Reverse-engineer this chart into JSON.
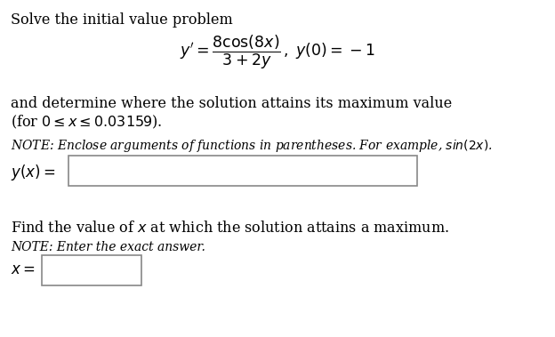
{
  "bg_color": "#ffffff",
  "title_text": "Solve the initial value problem",
  "para1_line1": "and determine where the solution attains its maximum value",
  "para1_line2": "(for $0 \\leq x \\leq 0.03159$).",
  "note1": "NOTE: Enclose arguments of functions in parentheses. For example, $sin(2x)$.",
  "label_yx": "$y(x) =$",
  "para2": "Find the value of $x$ at which the solution attains a maximum.",
  "note2": "NOTE: Enter the exact answer.",
  "label_x": "$x =$",
  "font_main": 11.5,
  "font_note": 10.0,
  "font_label": 12.0,
  "font_eq": 12.5
}
